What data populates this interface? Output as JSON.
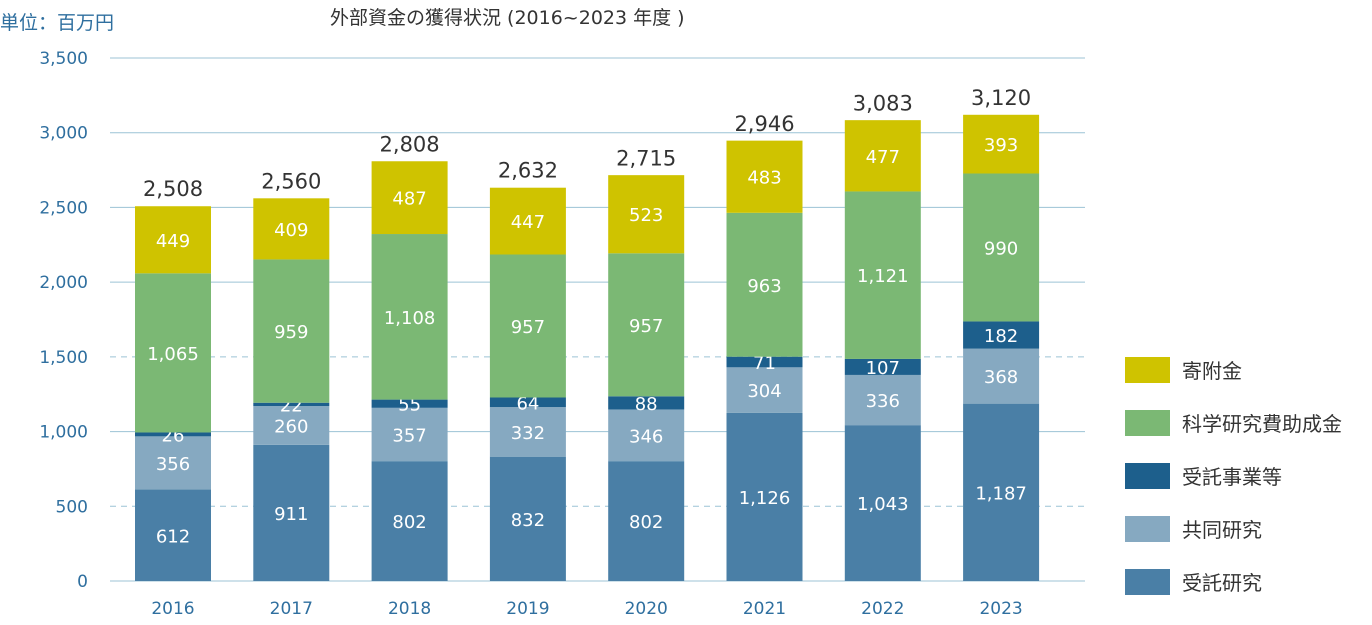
{
  "unit_label": "単位：百万円",
  "colors": {
    "grid": "#9cc3d5",
    "axis_text": "#2f6f9f",
    "value_text": "#333333",
    "segment_text": "#ffffff"
  },
  "chart_data": {
    "type": "bar",
    "stacked": true,
    "title": "外部資金の獲得状況 (2016~2023 年度 )",
    "xlabel": "",
    "ylabel": "",
    "ylim": [
      0,
      3500
    ],
    "yticks": [
      0,
      500,
      1000,
      1500,
      2000,
      2500,
      3000,
      3500
    ],
    "ytick_labels": [
      "0",
      "500",
      "1,000",
      "1,500",
      "2,000",
      "2,500",
      "3,000",
      "3,500"
    ],
    "grid": true,
    "legend_position": "right",
    "categories": [
      "2016",
      "2017",
      "2018",
      "2019",
      "2020",
      "2021",
      "2022",
      "2023"
    ],
    "series": [
      {
        "name": "受託研究",
        "color": "#4a7fa6",
        "values": [
          612,
          911,
          802,
          832,
          802,
          1126,
          1043,
          1187
        ],
        "labels": [
          "612",
          "911",
          "802",
          "832",
          "802",
          "1,126",
          "1,043",
          "1,187"
        ]
      },
      {
        "name": "共同研究",
        "color": "#86a9c1",
        "values": [
          356,
          260,
          357,
          332,
          346,
          304,
          336,
          368
        ],
        "labels": [
          "356",
          "260",
          "357",
          "332",
          "346",
          "304",
          "336",
          "368"
        ]
      },
      {
        "name": "受託事業等",
        "color": "#1d5f8c",
        "values": [
          26,
          22,
          55,
          64,
          88,
          71,
          107,
          182
        ],
        "labels": [
          "26",
          "22",
          "55",
          "64",
          "88",
          "71",
          "107",
          "182"
        ]
      },
      {
        "name": "科学研究費助成金",
        "color": "#7bb874",
        "values": [
          1065,
          959,
          1108,
          957,
          957,
          963,
          1121,
          990
        ],
        "labels": [
          "1,065",
          "959",
          "1,108",
          "957",
          "957",
          "963",
          "1,121",
          "990"
        ]
      },
      {
        "name": "寄附金",
        "color": "#cfc300",
        "values": [
          449,
          409,
          487,
          447,
          523,
          483,
          477,
          393
        ],
        "labels": [
          "449",
          "409",
          "487",
          "447",
          "523",
          "483",
          "477",
          "393"
        ]
      }
    ],
    "totals": [
      2508,
      2560,
      2808,
      2632,
      2715,
      2946,
      3083,
      3120
    ],
    "total_labels": [
      "2,508",
      "2,560",
      "2,808",
      "2,632",
      "2,715",
      "2,946",
      "3,083",
      "3,120"
    ]
  }
}
